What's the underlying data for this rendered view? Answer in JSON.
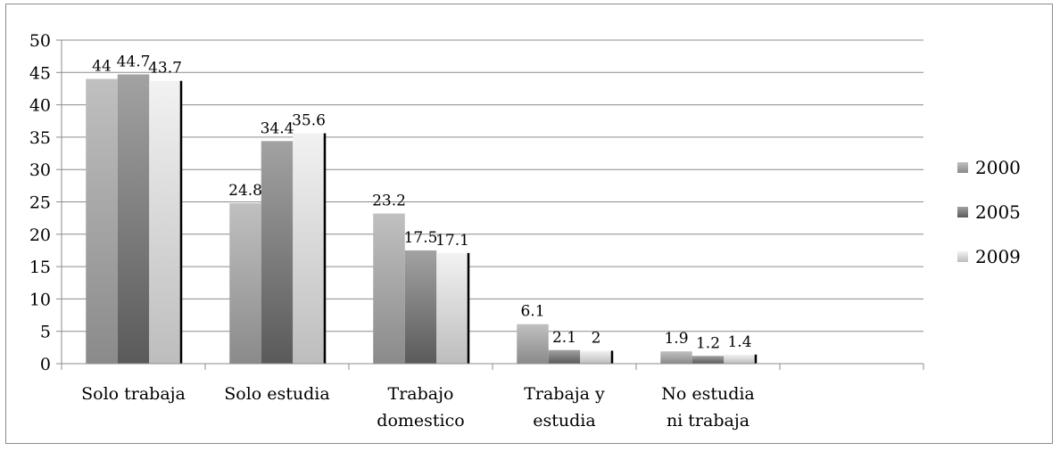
{
  "chart_data": {
    "type": "bar",
    "categories": [
      [
        "Solo trabaja"
      ],
      [
        "Solo estudia"
      ],
      [
        "Trabajo",
        "domestico"
      ],
      [
        "Trabaja y",
        "estudia"
      ],
      [
        "No estudia",
        "ni trabaja"
      ]
    ],
    "series": [
      {
        "name": "2000",
        "values": [
          44,
          24.8,
          23.2,
          6.1,
          1.9
        ]
      },
      {
        "name": "2005",
        "values": [
          44.7,
          34.4,
          17.5,
          2.1,
          1.2
        ]
      },
      {
        "name": "2009",
        "values": [
          43.7,
          35.6,
          17.1,
          2,
          1.4
        ]
      }
    ],
    "data_labels": [
      [
        "44",
        "24.8",
        "23.2",
        "6.1",
        "1.9"
      ],
      [
        "44.7",
        "34.4",
        "17.5",
        "2.1",
        "1.2"
      ],
      [
        "43.7",
        "35.6",
        "17.1",
        "2",
        "1.4"
      ]
    ],
    "ylim": [
      0,
      50
    ],
    "yticks": [
      "0",
      "5",
      "10",
      "15",
      "20",
      "25",
      "30",
      "35",
      "40",
      "45",
      "50"
    ],
    "grid": true,
    "legend": "right",
    "colors": [
      "#9a9a9a",
      "#707070",
      "#dcdcdc"
    ]
  }
}
